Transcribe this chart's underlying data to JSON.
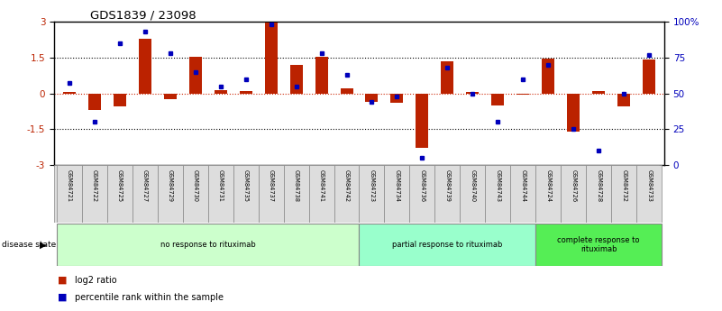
{
  "title": "GDS1839 / 23098",
  "samples": [
    "GSM84721",
    "GSM84722",
    "GSM84725",
    "GSM84727",
    "GSM84729",
    "GSM84730",
    "GSM84731",
    "GSM84735",
    "GSM84737",
    "GSM84738",
    "GSM84741",
    "GSM84742",
    "GSM84723",
    "GSM84734",
    "GSM84736",
    "GSM84739",
    "GSM84740",
    "GSM84743",
    "GSM84744",
    "GSM84724",
    "GSM84726",
    "GSM84728",
    "GSM84732",
    "GSM84733"
  ],
  "log2_ratio": [
    0.05,
    -0.7,
    -0.55,
    2.3,
    -0.25,
    1.55,
    0.15,
    0.1,
    2.95,
    1.2,
    1.55,
    0.2,
    -0.35,
    -0.4,
    -2.3,
    1.35,
    0.05,
    -0.5,
    -0.05,
    1.45,
    -1.6,
    0.1,
    -0.55,
    1.4
  ],
  "percentile": [
    57,
    30,
    85,
    93,
    78,
    65,
    55,
    60,
    98,
    55,
    78,
    63,
    44,
    48,
    5,
    68,
    50,
    30,
    60,
    70,
    25,
    10,
    50,
    77
  ],
  "groups": [
    {
      "label": "no response to rituximab",
      "start": 0,
      "end": 12,
      "color": "#ccffcc"
    },
    {
      "label": "partial response to rituximab",
      "start": 12,
      "end": 19,
      "color": "#99ffcc"
    },
    {
      "label": "complete response to\nrituximab",
      "start": 19,
      "end": 24,
      "color": "#55ee55"
    }
  ],
  "ylim": [
    -3,
    3
  ],
  "yticks_left": [
    -3,
    -1.5,
    0,
    1.5,
    3
  ],
  "yticks_right": [
    0,
    25,
    50,
    75,
    100
  ],
  "ytick_labels_right": [
    "0",
    "25",
    "50",
    "75",
    "100%"
  ],
  "bar_color": "#bb2200",
  "dot_color": "#0000bb",
  "hline_color": "#cc2200",
  "disease_state_label": "disease state",
  "legend_items": [
    {
      "label": "log2 ratio",
      "color": "#bb2200"
    },
    {
      "label": "percentile rank within the sample",
      "color": "#0000bb"
    }
  ]
}
